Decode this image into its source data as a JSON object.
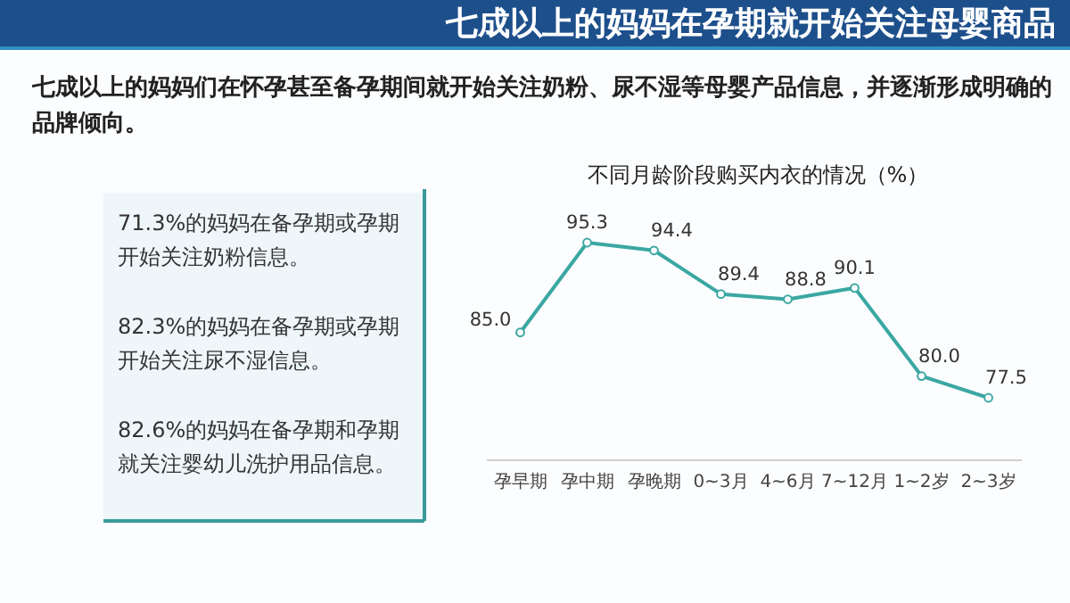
{
  "chart_data": {
    "type": "line",
    "title": "七成以上的妈妈在孕期就开始关注母婴商品",
    "subtitle": "不同月龄阶段购买内衣的情况（%）",
    "annotations": [
      "七成以上的妈妈们在怀孕甚至备孕期间就开始关注奶粉、尿不湿等母婴产品信息，并逐渐形成明确的品牌倾向。",
      "71.3%的妈妈在备孕期或孕期开始关注奶粉信息。",
      "82.3%的妈妈在备孕期或孕期开始关注尿不湿信息。",
      "82.6%的妈妈在备孕期和孕期就关注婴幼儿洗护用品信息。"
    ],
    "categories": [
      "孕早期",
      "孕中期",
      "孕晚期",
      "0~3月",
      "4~6月",
      "7~12月",
      "1~2岁",
      "2~3岁"
    ],
    "series": [
      {
        "color": "#3ba7a3",
        "values": [
          85.0,
          95.3,
          94.4,
          89.4,
          88.8,
          90.1,
          80.0,
          77.5
        ],
        "value_labels": [
          "85.0",
          "95.3",
          "94.4",
          "89.4",
          "88.8",
          "90.1",
          "80.0",
          "77.5"
        ]
      }
    ],
    "marker": "circle"
  }
}
